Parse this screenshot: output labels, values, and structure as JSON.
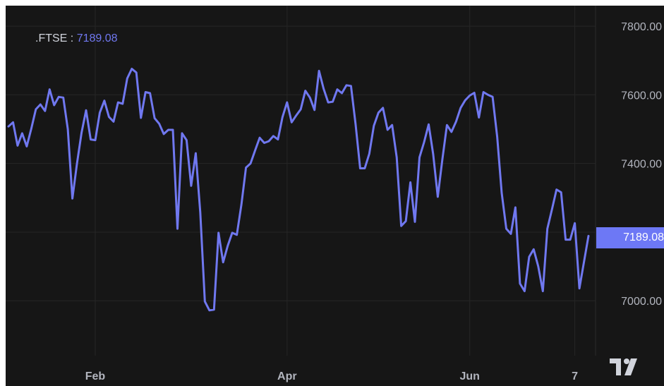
{
  "chart_data": {
    "type": "line",
    "symbol": ".FTSE",
    "last_value": "7189.08",
    "ylim": [
      6840,
      7860
    ],
    "y_ticks": [
      7000,
      7200,
      7400,
      7600,
      7800
    ],
    "y_tick_labels": [
      "7000.00",
      "7400.00",
      "7600.00",
      "7800.00"
    ],
    "y_tick_label_values": [
      7000,
      7400,
      7600,
      7800
    ],
    "x_labels": [
      "Feb",
      "Apr",
      "Jun",
      "7"
    ],
    "x_label_index": [
      19,
      61,
      101,
      124
    ],
    "series": [
      {
        "color": "#7078f0",
        "values": [
          7508,
          7520,
          7452,
          7488,
          7450,
          7502,
          7558,
          7572,
          7553,
          7616,
          7570,
          7594,
          7592,
          7500,
          7298,
          7400,
          7490,
          7555,
          7470,
          7468,
          7548,
          7583,
          7536,
          7522,
          7578,
          7574,
          7648,
          7676,
          7665,
          7533,
          7608,
          7605,
          7532,
          7516,
          7486,
          7498,
          7498,
          7210,
          7488,
          7468,
          7335,
          7430,
          7258,
          6998,
          6972,
          6974,
          7198,
          7112,
          7160,
          7198,
          7192,
          7280,
          7388,
          7400,
          7438,
          7475,
          7460,
          7465,
          7480,
          7470,
          7535,
          7578,
          7520,
          7540,
          7558,
          7612,
          7592,
          7556,
          7670,
          7618,
          7578,
          7580,
          7616,
          7605,
          7628,
          7626,
          7515,
          7386,
          7386,
          7428,
          7510,
          7548,
          7562,
          7498,
          7512,
          7418,
          7218,
          7232,
          7345,
          7230,
          7418,
          7462,
          7514,
          7427,
          7303,
          7412,
          7512,
          7492,
          7522,
          7562,
          7584,
          7598,
          7606,
          7534,
          7608,
          7600,
          7594,
          7478,
          7314,
          7210,
          7195,
          7272,
          7050,
          7028,
          7128,
          7150,
          7100,
          7028,
          7210,
          7266,
          7324,
          7316,
          7178,
          7178,
          7226,
          7036,
          7112,
          7189
        ]
      }
    ]
  }
}
